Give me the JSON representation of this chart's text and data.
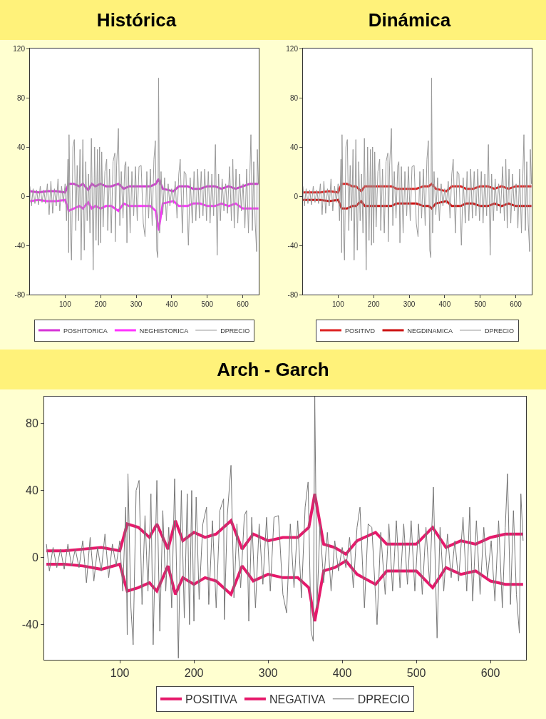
{
  "chart_data": [
    {
      "type": "line",
      "title": "Histórica",
      "xlim": [
        1,
        645
      ],
      "ylim": [
        -80,
        120
      ],
      "xticks": [
        100,
        200,
        300,
        400,
        500,
        600
      ],
      "yticks": [
        -80,
        -40,
        0,
        40,
        80,
        120
      ],
      "grid": false,
      "legend": "bottom",
      "series": [
        {
          "name": "POSHITORICA",
          "color": "#d633d6",
          "x": [
            1,
            25,
            50,
            75,
            100,
            110,
            125,
            140,
            150,
            165,
            175,
            185,
            200,
            215,
            230,
            250,
            265,
            280,
            300,
            320,
            340,
            355,
            363,
            375,
            390,
            405,
            420,
            445,
            460,
            480,
            500,
            522,
            540,
            560,
            580,
            600,
            620,
            644
          ],
          "values": [
            4,
            3,
            4,
            4,
            3,
            10,
            10,
            8,
            10,
            5,
            10,
            8,
            10,
            8,
            8,
            10,
            6,
            8,
            8,
            8,
            8,
            10,
            14,
            6,
            5,
            4,
            8,
            8,
            6,
            6,
            8,
            8,
            6,
            8,
            6,
            8,
            10,
            10
          ]
        },
        {
          "name": "NEGHISTORICA",
          "color": "#ff33ff",
          "x": [
            1,
            25,
            50,
            75,
            100,
            110,
            125,
            140,
            150,
            165,
            175,
            185,
            200,
            215,
            230,
            250,
            265,
            280,
            300,
            320,
            340,
            355,
            363,
            375,
            390,
            405,
            420,
            445,
            460,
            480,
            500,
            522,
            540,
            560,
            580,
            600,
            620,
            644
          ],
          "values": [
            -4,
            -3,
            -4,
            -4,
            -3,
            -12,
            -10,
            -8,
            -10,
            -5,
            -10,
            -8,
            -10,
            -8,
            -8,
            -12,
            -6,
            -8,
            -8,
            -8,
            -8,
            -12,
            -28,
            -6,
            -5,
            -4,
            -8,
            -8,
            -6,
            -6,
            -8,
            -8,
            -6,
            -8,
            -6,
            -10,
            -10,
            -10
          ]
        },
        {
          "name": "DPRECIO",
          "color": "#999999",
          "x": [
            1,
            5,
            10,
            15,
            20,
            25,
            30,
            35,
            40,
            45,
            50,
            55,
            60,
            65,
            70,
            75,
            80,
            85,
            90,
            95,
            100,
            104,
            108,
            110,
            111,
            115,
            118,
            122,
            126,
            130,
            134,
            138,
            142,
            145,
            150,
            154,
            158,
            162,
            166,
            170,
            174,
            179,
            183,
            187,
            191,
            194,
            197,
            200,
            203,
            207,
            212,
            217,
            220,
            225,
            230,
            235,
            240,
            241,
            245,
            250,
            254,
            258,
            263,
            268,
            271,
            274,
            278,
            283,
            288,
            293,
            298,
            303,
            308,
            314,
            320,
            325,
            330,
            335,
            340,
            345,
            350,
            354,
            358,
            361,
            363,
            366,
            370,
            375,
            380,
            385,
            390,
            395,
            400,
            405,
            410,
            415,
            420,
            424,
            430,
            435,
            440,
            447,
            452,
            458,
            463,
            468,
            473,
            478,
            483,
            488,
            493,
            498,
            503,
            508,
            513,
            518,
            523,
            528,
            532,
            537,
            542,
            547,
            552,
            557,
            563,
            568,
            572,
            576,
            581,
            586,
            591,
            596,
            601,
            606,
            611,
            616,
            620,
            623,
            627,
            631,
            635,
            639,
            641,
            644
          ],
          "values": [
            8,
            -8,
            6,
            -6,
            5,
            -7,
            8,
            -5,
            5,
            -6,
            10,
            -15,
            12,
            -14,
            6,
            -8,
            14,
            -12,
            8,
            -5,
            10,
            -20,
            30,
            -46,
            50,
            -30,
            -52,
            40,
            46,
            -28,
            25,
            -20,
            38,
            -52,
            46,
            -44,
            28,
            -20,
            18,
            -30,
            47,
            -60,
            40,
            -36,
            38,
            -40,
            40,
            -38,
            36,
            -25,
            20,
            30,
            -28,
            22,
            -30,
            28,
            35,
            -37,
            25,
            55,
            -24,
            20,
            -18,
            25,
            28,
            -38,
            24,
            -30,
            20,
            -16,
            24,
            -20,
            24,
            25,
            -22,
            -33,
            20,
            -18,
            22,
            -24,
            30,
            45,
            -44,
            -50,
            96,
            -30,
            20,
            -15,
            15,
            -20,
            10,
            -8,
            6,
            -6,
            12,
            -18,
            18,
            30,
            -30,
            20,
            18,
            -40,
            15,
            -22,
            20,
            -20,
            22,
            -18,
            20,
            -16,
            22,
            -20,
            20,
            -22,
            18,
            -16,
            42,
            -48,
            18,
            -20,
            14,
            -12,
            10,
            -14,
            24,
            -20,
            30,
            -26,
            22,
            -22,
            18,
            -12,
            10,
            -26,
            22,
            -30,
            18,
            50,
            -28,
            28,
            -22,
            -45,
            38,
            10
          ]
        }
      ]
    },
    {
      "type": "line",
      "title": "Dinámica",
      "xlim": [
        1,
        645
      ],
      "ylim": [
        -80,
        120
      ],
      "xticks": [
        100,
        200,
        300,
        400,
        500,
        600
      ],
      "yticks": [
        -80,
        -40,
        0,
        40,
        80,
        120
      ],
      "grid": false,
      "legend": "bottom",
      "series": [
        {
          "name": "POSITIVD",
          "color": "#dd2222",
          "x": [
            1,
            25,
            50,
            75,
            100,
            110,
            125,
            140,
            150,
            165,
            175,
            185,
            200,
            215,
            230,
            250,
            265,
            280,
            300,
            320,
            340,
            355,
            363,
            375,
            390,
            405,
            420,
            445,
            460,
            480,
            500,
            522,
            540,
            560,
            580,
            600,
            620,
            644
          ],
          "values": [
            3,
            3,
            3,
            4,
            3,
            10,
            10,
            8,
            8,
            4,
            8,
            8,
            8,
            8,
            8,
            8,
            6,
            6,
            6,
            6,
            8,
            8,
            10,
            6,
            5,
            4,
            8,
            8,
            6,
            6,
            8,
            8,
            6,
            8,
            6,
            8,
            8,
            8
          ]
        },
        {
          "name": "NEGDINAMICA",
          "color": "#cc1111",
          "x": [
            1,
            25,
            50,
            75,
            100,
            110,
            125,
            140,
            150,
            165,
            175,
            185,
            200,
            215,
            230,
            250,
            265,
            280,
            300,
            320,
            340,
            355,
            363,
            375,
            390,
            405,
            420,
            445,
            460,
            480,
            500,
            522,
            540,
            560,
            580,
            600,
            620,
            644
          ],
          "values": [
            -3,
            -3,
            -3,
            -4,
            -3,
            -10,
            -10,
            -8,
            -8,
            -4,
            -8,
            -8,
            -8,
            -8,
            -8,
            -8,
            -6,
            -6,
            -6,
            -6,
            -8,
            -8,
            -10,
            -6,
            -5,
            -4,
            -8,
            -8,
            -6,
            -6,
            -8,
            -8,
            -6,
            -8,
            -6,
            -8,
            -8,
            -8
          ]
        },
        {
          "name": "DPRECIO",
          "color": "#999999",
          "x": [
            1,
            5,
            10,
            15,
            20,
            25,
            30,
            35,
            40,
            45,
            50,
            55,
            60,
            65,
            70,
            75,
            80,
            85,
            90,
            95,
            100,
            104,
            108,
            110,
            111,
            115,
            118,
            122,
            126,
            130,
            134,
            138,
            142,
            145,
            150,
            154,
            158,
            162,
            166,
            170,
            174,
            179,
            183,
            187,
            191,
            194,
            197,
            200,
            203,
            207,
            212,
            217,
            220,
            225,
            230,
            235,
            240,
            241,
            245,
            250,
            254,
            258,
            263,
            268,
            271,
            274,
            278,
            283,
            288,
            293,
            298,
            303,
            308,
            314,
            320,
            325,
            330,
            335,
            340,
            345,
            350,
            354,
            358,
            361,
            363,
            366,
            370,
            375,
            380,
            385,
            390,
            395,
            400,
            405,
            410,
            415,
            420,
            424,
            430,
            435,
            440,
            447,
            452,
            458,
            463,
            468,
            473,
            478,
            483,
            488,
            493,
            498,
            503,
            508,
            513,
            518,
            523,
            528,
            532,
            537,
            542,
            547,
            552,
            557,
            563,
            568,
            572,
            576,
            581,
            586,
            591,
            596,
            601,
            606,
            611,
            616,
            620,
            623,
            627,
            631,
            635,
            639,
            641,
            644
          ],
          "values": [
            8,
            -8,
            6,
            -6,
            5,
            -7,
            8,
            -5,
            5,
            -6,
            10,
            -15,
            12,
            -14,
            6,
            -8,
            14,
            -12,
            8,
            -5,
            10,
            -20,
            30,
            -46,
            50,
            -30,
            -52,
            40,
            46,
            -28,
            25,
            -20,
            38,
            -52,
            46,
            -44,
            28,
            -20,
            18,
            -30,
            47,
            -60,
            40,
            -36,
            38,
            -40,
            40,
            -38,
            36,
            -25,
            20,
            30,
            -28,
            22,
            -30,
            28,
            35,
            -37,
            25,
            55,
            -24,
            20,
            -18,
            25,
            28,
            -38,
            24,
            -30,
            20,
            -16,
            24,
            -20,
            24,
            25,
            -22,
            -33,
            20,
            -18,
            22,
            -24,
            30,
            45,
            -44,
            -50,
            96,
            -30,
            20,
            -15,
            15,
            -20,
            10,
            -8,
            6,
            -6,
            12,
            -18,
            18,
            30,
            -30,
            20,
            18,
            -40,
            15,
            -22,
            20,
            -20,
            22,
            -18,
            20,
            -16,
            22,
            -20,
            20,
            -22,
            18,
            -16,
            42,
            -48,
            18,
            -20,
            14,
            -12,
            10,
            -14,
            24,
            -20,
            30,
            -26,
            22,
            -22,
            18,
            -12,
            10,
            -26,
            22,
            -30,
            18,
            50,
            -28,
            28,
            -22,
            -45,
            38,
            10
          ]
        }
      ]
    },
    {
      "type": "line",
      "title": "Arch - Garch",
      "xlim": [
        -2,
        648
      ],
      "ylim": [
        -61,
        96
      ],
      "xticks": [
        100,
        200,
        300,
        400,
        500,
        600
      ],
      "yticks": [
        -40,
        0,
        40,
        80
      ],
      "grid": false,
      "legend": "bottom",
      "series": [
        {
          "name": "POSITIVA",
          "color": "#e6196b",
          "x": [
            1,
            25,
            50,
            75,
            100,
            110,
            125,
            140,
            150,
            165,
            175,
            185,
            200,
            215,
            230,
            250,
            265,
            280,
            300,
            320,
            340,
            355,
            363,
            375,
            390,
            405,
            420,
            445,
            460,
            480,
            500,
            522,
            540,
            560,
            580,
            600,
            620,
            644
          ],
          "values": [
            4,
            4,
            5,
            6,
            4,
            20,
            18,
            12,
            20,
            5,
            22,
            10,
            15,
            12,
            14,
            22,
            5,
            14,
            10,
            12,
            12,
            18,
            38,
            8,
            6,
            2,
            10,
            15,
            8,
            8,
            8,
            18,
            6,
            10,
            8,
            12,
            14,
            14
          ]
        },
        {
          "name": "NEGATIVA",
          "color": "#e6196b",
          "x": [
            1,
            25,
            50,
            75,
            100,
            110,
            125,
            140,
            150,
            165,
            175,
            185,
            200,
            215,
            230,
            250,
            265,
            280,
            300,
            320,
            340,
            355,
            363,
            375,
            390,
            405,
            420,
            445,
            460,
            480,
            500,
            522,
            540,
            560,
            580,
            600,
            620,
            644
          ],
          "values": [
            -4,
            -4,
            -5,
            -7,
            -4,
            -20,
            -18,
            -15,
            -20,
            -5,
            -22,
            -12,
            -16,
            -12,
            -14,
            -22,
            -5,
            -14,
            -10,
            -12,
            -12,
            -18,
            -38,
            -8,
            -6,
            -2,
            -10,
            -16,
            -8,
            -8,
            -8,
            -18,
            -6,
            -10,
            -8,
            -14,
            -16,
            -16
          ]
        },
        {
          "name": "DPRECIO",
          "color": "#777777",
          "x": [
            1,
            5,
            10,
            15,
            20,
            25,
            30,
            35,
            40,
            45,
            50,
            55,
            60,
            65,
            70,
            75,
            80,
            85,
            90,
            95,
            100,
            104,
            108,
            110,
            111,
            115,
            118,
            122,
            126,
            130,
            134,
            138,
            142,
            145,
            150,
            154,
            158,
            162,
            166,
            170,
            174,
            179,
            183,
            187,
            191,
            194,
            197,
            200,
            203,
            207,
            212,
            217,
            220,
            225,
            230,
            235,
            240,
            241,
            245,
            250,
            254,
            258,
            263,
            268,
            271,
            274,
            278,
            283,
            288,
            293,
            298,
            303,
            308,
            314,
            320,
            325,
            330,
            335,
            340,
            345,
            350,
            354,
            358,
            361,
            363,
            366,
            370,
            375,
            380,
            385,
            390,
            395,
            400,
            405,
            410,
            415,
            420,
            424,
            430,
            435,
            440,
            447,
            452,
            458,
            463,
            468,
            473,
            478,
            483,
            488,
            493,
            498,
            503,
            508,
            513,
            518,
            523,
            528,
            532,
            537,
            542,
            547,
            552,
            557,
            563,
            568,
            572,
            576,
            581,
            586,
            591,
            596,
            601,
            606,
            611,
            616,
            620,
            623,
            627,
            631,
            635,
            639,
            641,
            644
          ],
          "values": [
            8,
            -8,
            6,
            -6,
            5,
            -7,
            8,
            -5,
            5,
            -6,
            10,
            -15,
            12,
            -14,
            6,
            -8,
            14,
            -12,
            8,
            -5,
            10,
            -20,
            30,
            -46,
            50,
            -30,
            -52,
            40,
            46,
            -28,
            25,
            -20,
            38,
            -52,
            46,
            -44,
            28,
            -20,
            18,
            -30,
            47,
            -60,
            40,
            -36,
            38,
            -40,
            40,
            -38,
            36,
            -25,
            20,
            30,
            -28,
            22,
            -30,
            28,
            35,
            -37,
            25,
            55,
            -24,
            20,
            -18,
            25,
            28,
            -38,
            24,
            -30,
            20,
            -16,
            24,
            -20,
            24,
            25,
            -22,
            -33,
            20,
            -18,
            22,
            -24,
            30,
            45,
            -44,
            -50,
            96,
            -30,
            20,
            -15,
            15,
            -20,
            10,
            -8,
            6,
            -6,
            12,
            -18,
            18,
            30,
            -30,
            20,
            18,
            -40,
            15,
            -22,
            20,
            -20,
            22,
            -18,
            20,
            -16,
            22,
            -20,
            20,
            -22,
            18,
            -16,
            42,
            -48,
            18,
            -20,
            14,
            -12,
            10,
            -14,
            24,
            -20,
            30,
            -26,
            22,
            -22,
            18,
            -12,
            10,
            -26,
            22,
            -30,
            18,
            50,
            -28,
            28,
            -22,
            -45,
            38,
            10
          ]
        }
      ]
    }
  ]
}
